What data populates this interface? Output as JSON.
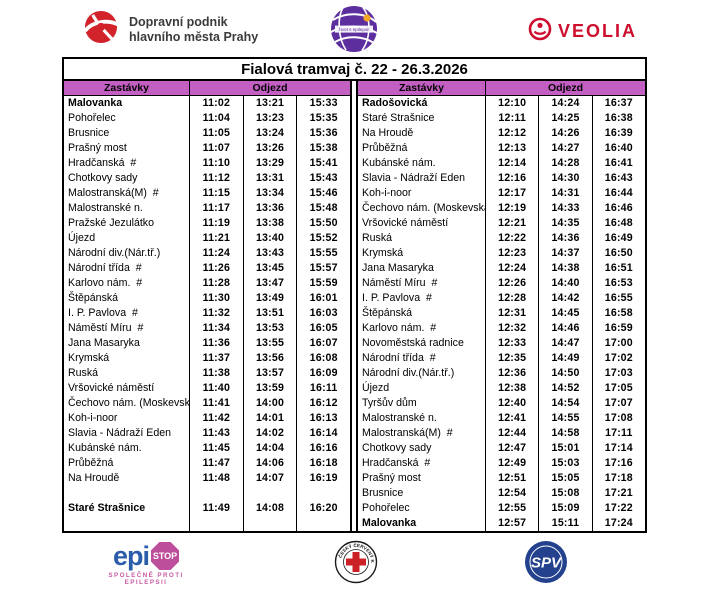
{
  "brand_bar": {
    "dpp": {
      "name_line1": "Dopravní podnik",
      "name_line2": "hlavního města Prahy"
    },
    "epilepsy_ball_label": "život s epilepsií",
    "veolia_label": "VEOLIA"
  },
  "timetable": {
    "title": "Fialová tramvaj č. 22  - 26.3.2026",
    "headers": {
      "stops": "Zastávky",
      "departure": "Odjezd"
    },
    "left": {
      "rows": [
        {
          "stop": "Malovanka",
          "bold": true,
          "times": [
            "11:02",
            "13:21",
            "15:33"
          ]
        },
        {
          "stop": "Pohořelec",
          "bold": false,
          "times": [
            "11:04",
            "13:23",
            "15:35"
          ]
        },
        {
          "stop": "Brusnice",
          "bold": false,
          "times": [
            "11:05",
            "13:24",
            "15:36"
          ]
        },
        {
          "stop": "Prašný most",
          "bold": false,
          "times": [
            "11:07",
            "13:26",
            "15:38"
          ]
        },
        {
          "stop": "Hradčanská  #",
          "bold": false,
          "times": [
            "11:10",
            "13:29",
            "15:41"
          ]
        },
        {
          "stop": "Chotkovy sady",
          "bold": false,
          "times": [
            "11:12",
            "13:31",
            "15:43"
          ]
        },
        {
          "stop": "Malostranská(M)  #",
          "bold": false,
          "times": [
            "11:15",
            "13:34",
            "15:46"
          ]
        },
        {
          "stop": "Malostranské n.",
          "bold": false,
          "times": [
            "11:17",
            "13:36",
            "15:48"
          ]
        },
        {
          "stop": "Pražské Jezulátko",
          "bold": false,
          "times": [
            "11:19",
            "13:38",
            "15:50"
          ]
        },
        {
          "stop": "Újezd",
          "bold": false,
          "times": [
            "11:21",
            "13:40",
            "15:52"
          ]
        },
        {
          "stop": "Národní div.(Nár.tř.)",
          "bold": false,
          "times": [
            "11:24",
            "13:43",
            "15:55"
          ]
        },
        {
          "stop": "Národní třída  #",
          "bold": false,
          "times": [
            "11:26",
            "13:45",
            "15:57"
          ]
        },
        {
          "stop": "Karlovo nám.  #",
          "bold": false,
          "times": [
            "11:28",
            "13:47",
            "15:59"
          ]
        },
        {
          "stop": "Štěpánská",
          "bold": false,
          "times": [
            "11:30",
            "13:49",
            "16:01"
          ]
        },
        {
          "stop": "I. P. Pavlova  #",
          "bold": false,
          "times": [
            "11:32",
            "13:51",
            "16:03"
          ]
        },
        {
          "stop": "Náměstí Míru  #",
          "bold": false,
          "times": [
            "11:34",
            "13:53",
            "16:05"
          ]
        },
        {
          "stop": "Jana Masaryka",
          "bold": false,
          "times": [
            "11:36",
            "13:55",
            "16:07"
          ]
        },
        {
          "stop": "Krymská",
          "bold": false,
          "times": [
            "11:37",
            "13:56",
            "16:08"
          ]
        },
        {
          "stop": "Ruská",
          "bold": false,
          "times": [
            "11:38",
            "13:57",
            "16:09"
          ]
        },
        {
          "stop": "Vršovické náměstí",
          "bold": false,
          "times": [
            "11:40",
            "13:59",
            "16:11"
          ]
        },
        {
          "stop": "Čechovo nám. (Moskevská)",
          "bold": false,
          "times": [
            "11:41",
            "14:00",
            "16:12"
          ]
        },
        {
          "stop": "Koh-i-noor",
          "bold": false,
          "times": [
            "11:42",
            "14:01",
            "16:13"
          ]
        },
        {
          "stop": "Slavia - Nádraží Eden",
          "bold": false,
          "times": [
            "11:43",
            "14:02",
            "16:14"
          ]
        },
        {
          "stop": "Kubánské nám.",
          "bold": false,
          "times": [
            "11:45",
            "14:04",
            "16:16"
          ]
        },
        {
          "stop": "Průběžná",
          "bold": false,
          "times": [
            "11:47",
            "14:06",
            "16:18"
          ]
        },
        {
          "stop": "Na Hroudě",
          "bold": false,
          "times": [
            "11:48",
            "14:07",
            "16:19"
          ]
        },
        {
          "stop": "",
          "bold": false,
          "times": [
            "",
            "",
            ""
          ]
        },
        {
          "stop": "Staré Strašnice",
          "bold": true,
          "times": [
            "11:49",
            "14:08",
            "16:20"
          ]
        },
        {
          "stop": "",
          "bold": false,
          "times": [
            "",
            "",
            ""
          ]
        }
      ]
    },
    "right": {
      "rows": [
        {
          "stop": "Radošovická",
          "bold": true,
          "times": [
            "12:10",
            "14:24",
            "16:37"
          ]
        },
        {
          "stop": "Staré Strašnice",
          "bold": false,
          "times": [
            "12:11",
            "14:25",
            "16:38"
          ]
        },
        {
          "stop": "Na Hroudě",
          "bold": false,
          "times": [
            "12:12",
            "14:26",
            "16:39"
          ]
        },
        {
          "stop": "Průběžná",
          "bold": false,
          "times": [
            "12:13",
            "14:27",
            "16:40"
          ]
        },
        {
          "stop": "Kubánské nám.",
          "bold": false,
          "times": [
            "12:14",
            "14:28",
            "16:41"
          ]
        },
        {
          "stop": "Slavia - Nádraží Eden",
          "bold": false,
          "times": [
            "12:16",
            "14:30",
            "16:43"
          ]
        },
        {
          "stop": "Koh-i-noor",
          "bold": false,
          "times": [
            "12:17",
            "14:31",
            "16:44"
          ]
        },
        {
          "stop": "Čechovo nám. (Moskevská)",
          "bold": false,
          "times": [
            "12:19",
            "14:33",
            "16:46"
          ]
        },
        {
          "stop": "Vršovické náměstí",
          "bold": false,
          "times": [
            "12:21",
            "14:35",
            "16:48"
          ]
        },
        {
          "stop": "Ruská",
          "bold": false,
          "times": [
            "12:22",
            "14:36",
            "16:49"
          ]
        },
        {
          "stop": "Krymská",
          "bold": false,
          "times": [
            "12:23",
            "14:37",
            "16:50"
          ]
        },
        {
          "stop": "Jana Masaryka",
          "bold": false,
          "times": [
            "12:24",
            "14:38",
            "16:51"
          ]
        },
        {
          "stop": "Náměstí Míru  #",
          "bold": false,
          "times": [
            "12:26",
            "14:40",
            "16:53"
          ]
        },
        {
          "stop": "I. P. Pavlova  #",
          "bold": false,
          "times": [
            "12:28",
            "14:42",
            "16:55"
          ]
        },
        {
          "stop": "Štěpánská",
          "bold": false,
          "times": [
            "12:31",
            "14:45",
            "16:58"
          ]
        },
        {
          "stop": "Karlovo nám.  #",
          "bold": false,
          "times": [
            "12:32",
            "14:46",
            "16:59"
          ]
        },
        {
          "stop": "Novoměstská radnice",
          "bold": false,
          "times": [
            "12:33",
            "14:47",
            "17:00"
          ]
        },
        {
          "stop": "Národní třída  #",
          "bold": false,
          "times": [
            "12:35",
            "14:49",
            "17:02"
          ]
        },
        {
          "stop": "Národní div.(Nár.tř.)",
          "bold": false,
          "times": [
            "12:36",
            "14:50",
            "17:03"
          ]
        },
        {
          "stop": "Újezd",
          "bold": false,
          "times": [
            "12:38",
            "14:52",
            "17:05"
          ]
        },
        {
          "stop": "Tyršův dům",
          "bold": false,
          "times": [
            "12:40",
            "14:54",
            "17:07"
          ]
        },
        {
          "stop": "Malostranské n.",
          "bold": false,
          "times": [
            "12:41",
            "14:55",
            "17:08"
          ]
        },
        {
          "stop": "Malostranská(M)  #",
          "bold": false,
          "times": [
            "12:44",
            "14:58",
            "17:11"
          ]
        },
        {
          "stop": "Chotkovy sady",
          "bold": false,
          "times": [
            "12:47",
            "15:01",
            "17:14"
          ]
        },
        {
          "stop": "Hradčanská  #",
          "bold": false,
          "times": [
            "12:49",
            "15:03",
            "17:16"
          ]
        },
        {
          "stop": "Prašný most",
          "bold": false,
          "times": [
            "12:51",
            "15:05",
            "17:18"
          ]
        },
        {
          "stop": "Brusnice",
          "bold": false,
          "times": [
            "12:54",
            "15:08",
            "17:21"
          ]
        },
        {
          "stop": "Pohořelec",
          "bold": false,
          "times": [
            "12:55",
            "15:09",
            "17:22"
          ]
        },
        {
          "stop": "Malovanka",
          "bold": true,
          "times": [
            "12:57",
            "15:11",
            "17:24"
          ]
        }
      ]
    }
  },
  "footer": {
    "epistop": {
      "epi": "epi",
      "stop": "STOP",
      "tagline": "SPOLEČNĚ PROTI EPILEPSII"
    },
    "red_cross_label": "ČESKÝ ČERVENÝ KŘÍŽ",
    "spv_label": "SPV"
  },
  "colors": {
    "header_bg": "#C35FC3",
    "dpp_red": "#D2232A",
    "veolia_red": "#CE0E2D",
    "epilepsy_purple": "#5D2E9E",
    "epilepsy_orange": "#F5A623",
    "epistop_blue": "#2A5CAA",
    "epistop_pink": "#BC4E9B",
    "cross_red": "#CC2027",
    "spv_blue": "#24418E"
  }
}
